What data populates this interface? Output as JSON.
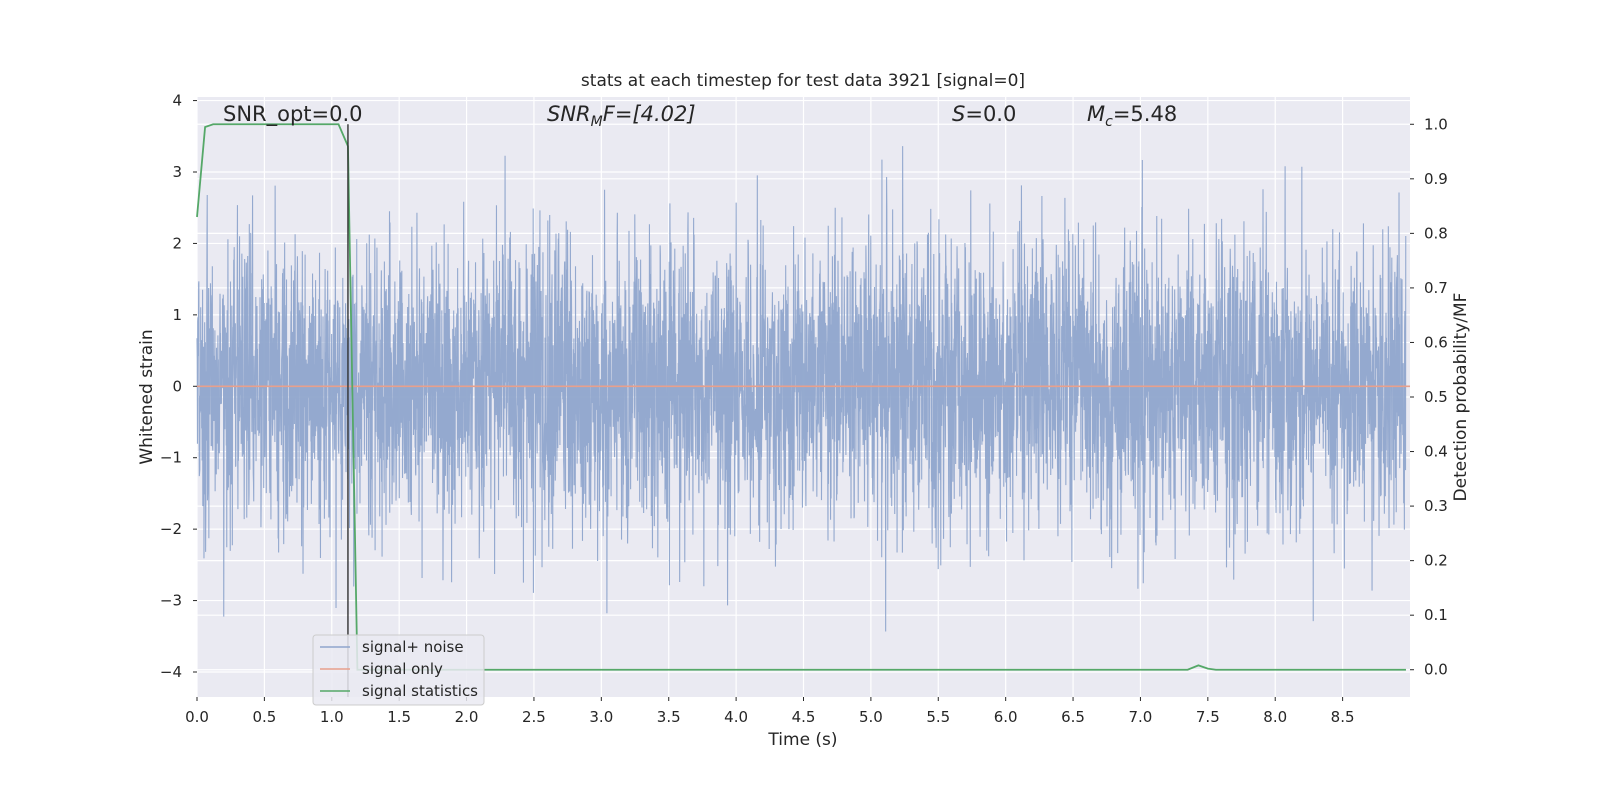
{
  "chart_data": {
    "type": "line",
    "title": "stats at each timestep for test data 3921 [signal=0]",
    "xlabel": "Time (s)",
    "ylabel_left": "Whitened strain",
    "ylabel_right": "Detection probability/MF",
    "xlim": [
      0.0,
      9.0
    ],
    "ylim_left": [
      -4.35,
      4.05
    ],
    "ylim_right": [
      -0.05,
      1.05
    ],
    "x_ticks": [
      "0.0",
      "0.5",
      "1.0",
      "1.5",
      "2.0",
      "2.5",
      "3.0",
      "3.5",
      "4.0",
      "4.5",
      "5.0",
      "5.5",
      "6.0",
      "6.5",
      "7.0",
      "7.5",
      "8.0",
      "8.5"
    ],
    "y_left_ticks": [
      "4",
      "3",
      "2",
      "1",
      "0",
      "−1",
      "−2",
      "−3",
      "−4"
    ],
    "y_right_ticks": [
      "1.0",
      "0.9",
      "0.8",
      "0.7",
      "0.6",
      "0.5",
      "0.4",
      "0.3",
      "0.2",
      "0.1",
      "0.0"
    ],
    "grid": true,
    "legend_placement": "lower-left",
    "annotations": {
      "snr_opt": "SNR_opt=0.0",
      "snr_mf_main": "SNR",
      "snr_mf_sub": "M",
      "snr_mf_rest": "F=[4.02]",
      "s_main": "S",
      "s_rest": "=0.0",
      "mc_main": "M",
      "mc_sub": "c",
      "mc_rest": "=5.48"
    },
    "vline_x": 1.12,
    "series": [
      {
        "name": "signal+ noise",
        "color": "#8fa5cc",
        "axis": "left",
        "description_values": "whitened noise, approx. unit variance, roughly within ±2 with spikes up to about ±3.6",
        "seed": 3921
      },
      {
        "name": "signal only",
        "color": "#e8a08c",
        "axis": "left",
        "x": [
          0.0,
          9.0
        ],
        "y": [
          0.0,
          0.0
        ]
      },
      {
        "name": "signal statistics",
        "color": "#55a868",
        "axis": "right",
        "x": [
          0.0,
          0.06,
          0.12,
          0.5,
          1.0,
          1.05,
          1.12,
          1.19,
          1.25,
          7.35,
          7.43,
          7.5,
          7.56,
          8.97
        ],
        "y": [
          0.83,
          0.995,
          1.0,
          1.0,
          1.0,
          1.0,
          0.96,
          0.0,
          0.0,
          0.0,
          0.008,
          0.002,
          0.0,
          0.0
        ]
      }
    ],
    "colors": {
      "plot_bg": "#eaeaf2",
      "grid": "#ffffff",
      "noise": "#8fa5cc",
      "signal": "#e8a08c",
      "stats": "#55a868",
      "vline": "#333333"
    }
  }
}
